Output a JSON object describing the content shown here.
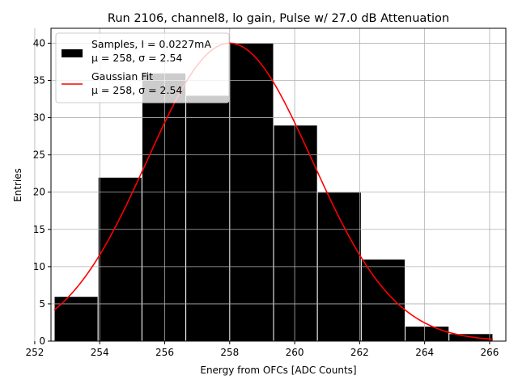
{
  "chart_data": {
    "type": "bar",
    "title": "Run 2106, channel8, lo gain, Pulse w/ 27.0 dB Attenuation",
    "xlabel": "Energy from OFCs [ADC Counts]",
    "ylabel": "Entries",
    "xlim": [
      252.5,
      266.5
    ],
    "ylim": [
      0,
      42
    ],
    "xticks": [
      252,
      254,
      256,
      258,
      260,
      262,
      264,
      266
    ],
    "yticks": [
      0,
      5,
      10,
      15,
      20,
      25,
      30,
      35,
      40
    ],
    "grid": true,
    "bins": [
      {
        "left": 252.6,
        "right": 253.95,
        "count": 6
      },
      {
        "left": 253.95,
        "right": 255.3,
        "count": 22
      },
      {
        "left": 255.3,
        "right": 256.65,
        "count": 36
      },
      {
        "left": 256.65,
        "right": 258.0,
        "count": 33
      },
      {
        "left": 258.0,
        "right": 259.35,
        "count": 40
      },
      {
        "left": 259.35,
        "right": 260.7,
        "count": 29
      },
      {
        "left": 260.7,
        "right": 262.05,
        "count": 20
      },
      {
        "left": 262.05,
        "right": 263.4,
        "count": 11
      },
      {
        "left": 263.4,
        "right": 264.75,
        "count": 2
      },
      {
        "left": 264.75,
        "right": 266.1,
        "count": 1
      }
    ],
    "fit": {
      "amplitude": 40,
      "mean": 258.0,
      "sigma": 2.54,
      "x_range": [
        252.6,
        266.1
      ]
    },
    "series": [
      {
        "name": "Samples, I = 0.0227mA",
        "sub": "μ = 258, σ = 2.54",
        "color": "#000000",
        "kind": "histogram"
      },
      {
        "name": "Gaussian Fit",
        "sub": "μ = 258, σ = 2.54",
        "color": "#ff0000",
        "kind": "line"
      }
    ],
    "legend_position": "top-left"
  }
}
